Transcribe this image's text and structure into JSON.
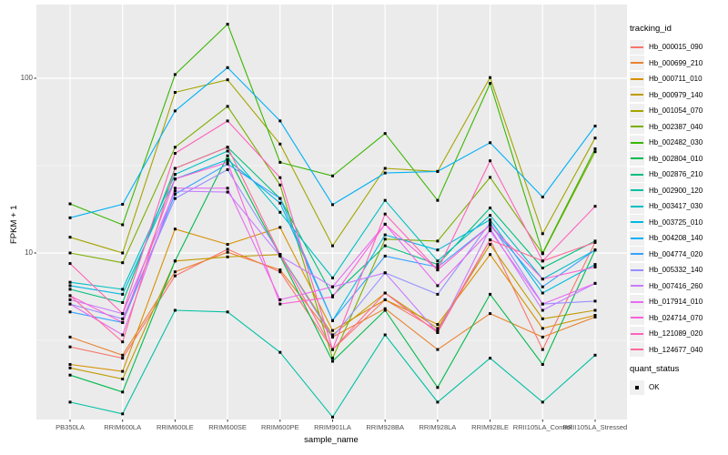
{
  "chart_data": {
    "type": "line",
    "title": "",
    "xlabel": "sample_name",
    "ylabel": "FPKM + 1",
    "y_scale": "log10",
    "y_ticks": [
      "100",
      "10"
    ],
    "y_tick_values": [
      100,
      10
    ],
    "y_minor_tick_values": [
      31.62,
      3.162
    ],
    "ylim": [
      1.05,
      280
    ],
    "grid": "on",
    "legend_position": "right",
    "categories": [
      "PB350LA",
      "RRIM600LA",
      "RRIM600LE",
      "RRIM600SE",
      "RRIM600PE",
      "RRIM901LA",
      "RRIM928BA",
      "RRIM928LA",
      "RRIM928LE",
      "RRII105LA_Control",
      "RRII105LA_Stressed"
    ],
    "series": [
      {
        "name": "Hb_000015_090",
        "color": "#F8766D",
        "values": [
          2.9,
          2.5,
          7.4,
          10.5,
          7.8,
          2.8,
          5.4,
          3.6,
          11.9,
          2.8,
          11.5
        ]
      },
      {
        "name": "Hb_000699_210",
        "color": "#EA8331",
        "values": [
          3.3,
          2.6,
          7.8,
          10.1,
          8.0,
          3.3,
          4.8,
          2.8,
          4.5,
          3.3,
          4.3
        ]
      },
      {
        "name": "Hb_000711_010",
        "color": "#D89000",
        "values": [
          2.3,
          2.1,
          13.7,
          11.2,
          14.0,
          3.6,
          5.4,
          3.9,
          9.8,
          3.7,
          4.4
        ]
      },
      {
        "name": "Hb_000979_140",
        "color": "#C09B00",
        "values": [
          2.2,
          1.9,
          9.0,
          9.5,
          9.8,
          3.4,
          5.9,
          3.7,
          11.2,
          4.2,
          4.7
        ]
      },
      {
        "name": "Hb_001054_070",
        "color": "#A3A500",
        "values": [
          12.3,
          10.0,
          83,
          98,
          42,
          11.0,
          30.5,
          29.3,
          101,
          12.9,
          45.5
        ]
      },
      {
        "name": "Hb_002387_040",
        "color": "#7CAE00",
        "values": [
          10.0,
          8.8,
          40.3,
          69,
          24.5,
          2.5,
          12.0,
          11.7,
          27.1,
          9.9,
          38.0
        ]
      },
      {
        "name": "Hb_002482_030",
        "color": "#39B600",
        "values": [
          19.1,
          14.5,
          105,
          204,
          33,
          27.6,
          48.3,
          20.0,
          93.5,
          10.0,
          39.5
        ]
      },
      {
        "name": "Hb_002804_010",
        "color": "#00BB4E",
        "values": [
          2.0,
          1.6,
          9.0,
          36.0,
          9.6,
          2.4,
          4.7,
          1.7,
          5.8,
          2.3,
          10.4
        ]
      },
      {
        "name": "Hb_002876_210",
        "color": "#00BF7D",
        "values": [
          6.2,
          5.2,
          30.5,
          40.3,
          20.5,
          5.7,
          11.0,
          8.6,
          18.1,
          8.2,
          11.7
        ]
      },
      {
        "name": "Hb_002900_120",
        "color": "#00C1A3",
        "values": [
          1.4,
          1.2,
          4.7,
          4.6,
          2.7,
          1.15,
          3.4,
          1.4,
          2.5,
          1.4,
          2.6
        ]
      },
      {
        "name": "Hb_003417_030",
        "color": "#00BFC4",
        "values": [
          6.8,
          6.2,
          28.2,
          38.3,
          17.1,
          7.2,
          20.0,
          9.0,
          16.4,
          7.1,
          10.4
        ]
      },
      {
        "name": "Hb_003725_010",
        "color": "#00BAE0",
        "values": [
          6.5,
          5.8,
          26.5,
          34.2,
          19.3,
          4.1,
          12.7,
          10.4,
          15.5,
          5.9,
          8.6
        ]
      },
      {
        "name": "Hb_004208_140",
        "color": "#00B0F6",
        "values": [
          15.9,
          19.0,
          65,
          115,
          57,
          18.9,
          28.7,
          29.3,
          42.8,
          20.9,
          53.3
        ]
      },
      {
        "name": "Hb_004774_020",
        "color": "#35A2FF",
        "values": [
          4.6,
          4.0,
          21.7,
          32.3,
          20.5,
          4.1,
          9.6,
          8.3,
          14.4,
          6.4,
          10.4
        ]
      },
      {
        "name": "Hb_005332_140",
        "color": "#9590FF",
        "values": [
          5.1,
          4.2,
          20.5,
          30.0,
          9.8,
          3.3,
          7.7,
          5.8,
          14.9,
          5.1,
          5.3
        ]
      },
      {
        "name": "Hb_007416_260",
        "color": "#C77CFF",
        "values": [
          5.4,
          4.5,
          22.6,
          22.3,
          9.6,
          6.4,
          7.7,
          3.5,
          13.8,
          4.7,
          6.7
        ]
      },
      {
        "name": "Hb_017914_010",
        "color": "#E76BF3",
        "values": [
          5.1,
          3.4,
          23.5,
          23.5,
          5.4,
          6.4,
          14.6,
          6.5,
          13.4,
          5.1,
          6.7
        ]
      },
      {
        "name": "Hb_024714_070",
        "color": "#FA62DB",
        "values": [
          5.7,
          4.0,
          26.5,
          33.0,
          5.1,
          5.6,
          14.6,
          8.0,
          14.4,
          7.1,
          8.3
        ]
      },
      {
        "name": "Hb_121089_020",
        "color": "#FF62BC",
        "values": [
          8.7,
          4.5,
          37.2,
          57.0,
          27.0,
          2.8,
          16.7,
          8.0,
          33.7,
          9.0,
          18.5
        ]
      },
      {
        "name": "Hb_124677_040",
        "color": "#FF6A98",
        "values": [
          5.7,
          3.1,
          30.5,
          40.3,
          9.8,
          2.8,
          5.9,
          3.5,
          11.9,
          9.0,
          11.5
        ]
      }
    ],
    "legend": {
      "color_title": "tracking_id",
      "shape_title": "quant_status",
      "shape_items": [
        {
          "label": "OK",
          "glyph": "black-square"
        }
      ]
    }
  },
  "colors": {
    "panel_bg": "#EBEBEB",
    "gridline": "#FFFFFF",
    "axis_text": "#4D4D4D",
    "title_text": "#000000",
    "legend_key_bg": "#F0F0F0",
    "point": "#000000"
  }
}
